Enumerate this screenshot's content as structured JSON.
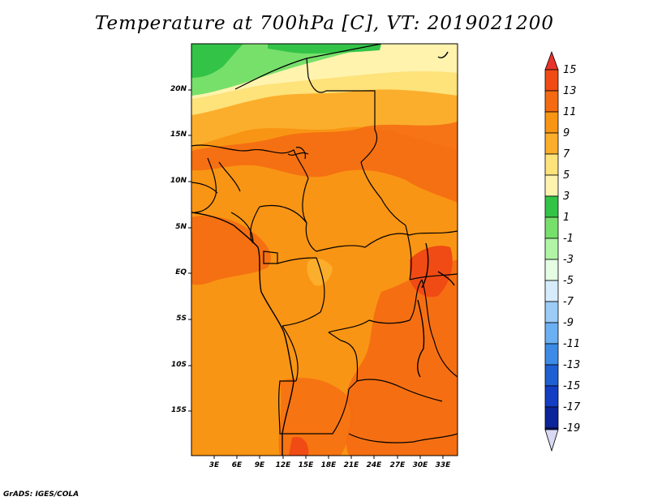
{
  "title": "Temperature at 700hPa [C], VT: 2019021200",
  "credit": "GrADS: IGES/COLA",
  "map": {
    "variable": "Temperature at 700hPa",
    "units": "C",
    "valid_time": "2019021200",
    "latitude_labels": [
      "20N",
      "15N",
      "10N",
      "5N",
      "EQ",
      "5S",
      "10S",
      "15S"
    ],
    "longitude_labels": [
      "3E",
      "6E",
      "9E",
      "12E",
      "15E",
      "18E",
      "21E",
      "24E",
      "27E",
      "30E",
      "33E"
    ]
  },
  "colorbar": {
    "labels": [
      "15",
      "13",
      "11",
      "9",
      "7",
      "5",
      "3",
      "1",
      "-1",
      "-3",
      "-5",
      "-7",
      "-9",
      "-11",
      "-13",
      "-15",
      "-17",
      "-19"
    ],
    "colors": [
      "#e8322a",
      "#f04b14",
      "#f46a12",
      "#f99514",
      "#fbae2c",
      "#fee27a",
      "#fff3ae",
      "#33c447",
      "#77e06b",
      "#b1f4a6",
      "#e5fde2",
      "#d6ecfd",
      "#9ccbf6",
      "#6ab0f2",
      "#3d8be7",
      "#1e5fd1",
      "#133ec4",
      "#0c2499",
      "#061575",
      "#d9d9f3"
    ]
  }
}
